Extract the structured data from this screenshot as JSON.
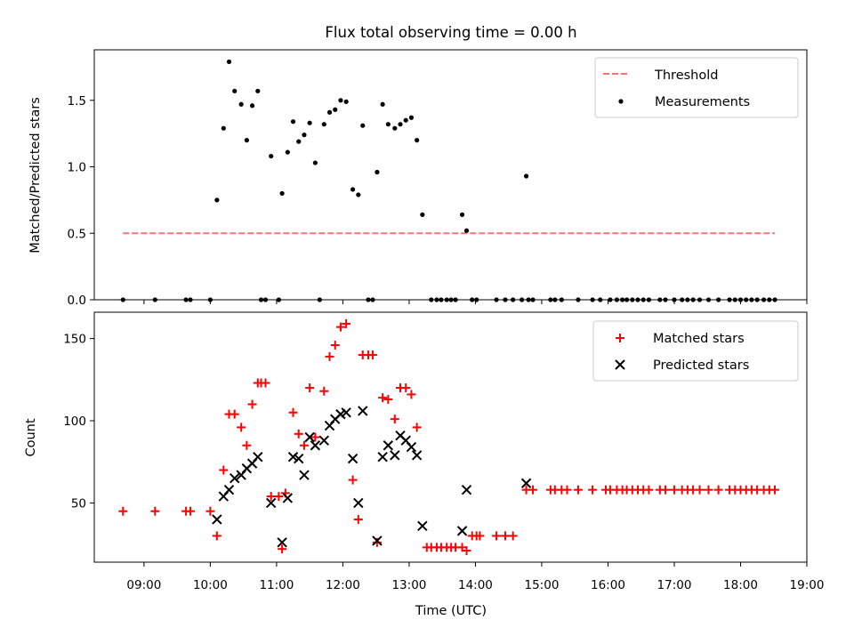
{
  "title": "Flux total observing time = 0.00 h",
  "top": {
    "ylabel": "Matched/Predicted stars",
    "ylim": [
      0,
      1.88
    ],
    "yticks": [
      "0.0",
      "0.5",
      "1.0",
      "1.5"
    ],
    "threshold": {
      "label": "Threshold",
      "value": 0.5,
      "x_range": [
        "08:41",
        "18:31"
      ],
      "color": "#ff7070"
    },
    "measurements_label": "Measurements",
    "measurements": [
      [
        "08:41",
        0
      ],
      [
        "09:10",
        0
      ],
      [
        "09:38",
        0
      ],
      [
        "09:42",
        0
      ],
      [
        "10:00",
        0
      ],
      [
        "10:06",
        0.75
      ],
      [
        "10:12",
        1.29
      ],
      [
        "10:17",
        1.79
      ],
      [
        "10:22",
        1.57
      ],
      [
        "10:28",
        1.47
      ],
      [
        "10:33",
        1.2
      ],
      [
        "10:38",
        1.46
      ],
      [
        "10:43",
        1.57
      ],
      [
        "10:46",
        0
      ],
      [
        "10:50",
        0
      ],
      [
        "10:55",
        1.08
      ],
      [
        "11:02",
        0
      ],
      [
        "11:05",
        0.8
      ],
      [
        "11:10",
        1.11
      ],
      [
        "11:15",
        1.34
      ],
      [
        "11:20",
        1.19
      ],
      [
        "11:25",
        1.24
      ],
      [
        "11:30",
        1.33
      ],
      [
        "11:35",
        1.03
      ],
      [
        "11:39",
        0
      ],
      [
        "11:43",
        1.32
      ],
      [
        "11:48",
        1.41
      ],
      [
        "11:53",
        1.43
      ],
      [
        "11:58",
        1.5
      ],
      [
        "12:03",
        1.49
      ],
      [
        "12:09",
        0.83
      ],
      [
        "12:14",
        0.79
      ],
      [
        "12:18",
        1.31
      ],
      [
        "12:23",
        0
      ],
      [
        "12:27",
        0
      ],
      [
        "12:31",
        0.96
      ],
      [
        "12:36",
        1.47
      ],
      [
        "12:41",
        1.32
      ],
      [
        "12:47",
        1.29
      ],
      [
        "12:52",
        1.32
      ],
      [
        "12:57",
        1.35
      ],
      [
        "13:02",
        1.37
      ],
      [
        "13:07",
        1.2
      ],
      [
        "13:12",
        0.64
      ],
      [
        "13:20",
        0
      ],
      [
        "13:25",
        0
      ],
      [
        "13:29",
        0
      ],
      [
        "13:34",
        0
      ],
      [
        "13:38",
        0
      ],
      [
        "13:42",
        0
      ],
      [
        "13:48",
        0.64
      ],
      [
        "13:52",
        0.52
      ],
      [
        "13:57",
        0
      ],
      [
        "14:01",
        0
      ],
      [
        "14:19",
        0
      ],
      [
        "14:27",
        0
      ],
      [
        "14:34",
        0
      ],
      [
        "14:42",
        0
      ],
      [
        "14:46",
        0.93
      ],
      [
        "14:48",
        0
      ],
      [
        "14:52",
        0
      ],
      [
        "15:08",
        0
      ],
      [
        "15:12",
        0
      ],
      [
        "15:18",
        0
      ],
      [
        "15:33",
        0
      ],
      [
        "15:46",
        0
      ],
      [
        "15:53",
        0
      ],
      [
        "16:02",
        0
      ],
      [
        "16:08",
        0
      ],
      [
        "16:13",
        0
      ],
      [
        "16:17",
        0
      ],
      [
        "16:22",
        0
      ],
      [
        "16:27",
        0
      ],
      [
        "16:32",
        0
      ],
      [
        "16:37",
        0
      ],
      [
        "16:47",
        0
      ],
      [
        "16:52",
        0
      ],
      [
        "17:00",
        0
      ],
      [
        "17:07",
        0
      ],
      [
        "17:12",
        0
      ],
      [
        "17:17",
        0
      ],
      [
        "17:23",
        0
      ],
      [
        "17:31",
        0
      ],
      [
        "17:40",
        0
      ],
      [
        "17:50",
        0
      ],
      [
        "17:55",
        0
      ],
      [
        "18:00",
        0
      ],
      [
        "18:05",
        0
      ],
      [
        "18:10",
        0
      ],
      [
        "18:15",
        0
      ],
      [
        "18:21",
        0
      ],
      [
        "18:26",
        0
      ],
      [
        "18:31",
        0
      ]
    ]
  },
  "bottom": {
    "ylabel": "Count",
    "ylim": [
      14,
      166
    ],
    "yticks": [
      "50",
      "100",
      "150"
    ],
    "matched_label": "Matched stars",
    "predicted_label": "Predicted stars",
    "matched": [
      [
        "08:41",
        45
      ],
      [
        "09:10",
        45
      ],
      [
        "09:38",
        45
      ],
      [
        "09:42",
        45
      ],
      [
        "10:00",
        45
      ],
      [
        "10:06",
        30
      ],
      [
        "10:12",
        70
      ],
      [
        "10:17",
        104
      ],
      [
        "10:22",
        104
      ],
      [
        "10:28",
        96
      ],
      [
        "10:33",
        85
      ],
      [
        "10:38",
        110
      ],
      [
        "10:43",
        123
      ],
      [
        "10:46",
        123
      ],
      [
        "10:50",
        123
      ],
      [
        "10:55",
        54
      ],
      [
        "11:02",
        54
      ],
      [
        "11:05",
        22
      ],
      [
        "11:08",
        56
      ],
      [
        "11:15",
        105
      ],
      [
        "11:20",
        92
      ],
      [
        "11:25",
        85
      ],
      [
        "11:30",
        120
      ],
      [
        "11:35",
        90
      ],
      [
        "11:43",
        118
      ],
      [
        "11:48",
        139
      ],
      [
        "11:53",
        146
      ],
      [
        "11:58",
        157
      ],
      [
        "12:03",
        159
      ],
      [
        "12:09",
        64
      ],
      [
        "12:14",
        40
      ],
      [
        "12:18",
        140
      ],
      [
        "12:23",
        140
      ],
      [
        "12:27",
        140
      ],
      [
        "12:31",
        26
      ],
      [
        "12:36",
        114
      ],
      [
        "12:41",
        113
      ],
      [
        "12:47",
        101
      ],
      [
        "12:52",
        120
      ],
      [
        "12:57",
        120
      ],
      [
        "13:02",
        116
      ],
      [
        "13:07",
        96
      ],
      [
        "13:16",
        23
      ],
      [
        "13:20",
        23
      ],
      [
        "13:25",
        23
      ],
      [
        "13:29",
        23
      ],
      [
        "13:34",
        23
      ],
      [
        "13:38",
        23
      ],
      [
        "13:42",
        23
      ],
      [
        "13:48",
        23
      ],
      [
        "13:52",
        21
      ],
      [
        "13:57",
        30
      ],
      [
        "14:01",
        30
      ],
      [
        "14:04",
        30
      ],
      [
        "14:19",
        30
      ],
      [
        "14:27",
        30
      ],
      [
        "14:34",
        30
      ],
      [
        "14:46",
        58
      ],
      [
        "14:52",
        58
      ],
      [
        "15:08",
        58
      ],
      [
        "15:12",
        58
      ],
      [
        "15:18",
        58
      ],
      [
        "15:23",
        58
      ],
      [
        "15:33",
        58
      ],
      [
        "15:46",
        58
      ],
      [
        "15:58",
        58
      ],
      [
        "16:02",
        58
      ],
      [
        "16:08",
        58
      ],
      [
        "16:13",
        58
      ],
      [
        "16:17",
        58
      ],
      [
        "16:22",
        58
      ],
      [
        "16:27",
        58
      ],
      [
        "16:32",
        58
      ],
      [
        "16:37",
        58
      ],
      [
        "16:47",
        58
      ],
      [
        "16:52",
        58
      ],
      [
        "17:00",
        58
      ],
      [
        "17:07",
        58
      ],
      [
        "17:12",
        58
      ],
      [
        "17:17",
        58
      ],
      [
        "17:23",
        58
      ],
      [
        "17:31",
        58
      ],
      [
        "17:40",
        58
      ],
      [
        "17:50",
        58
      ],
      [
        "17:55",
        58
      ],
      [
        "18:00",
        58
      ],
      [
        "18:05",
        58
      ],
      [
        "18:10",
        58
      ],
      [
        "18:15",
        58
      ],
      [
        "18:21",
        58
      ],
      [
        "18:26",
        58
      ],
      [
        "18:31",
        58
      ]
    ],
    "predicted": [
      [
        "10:06",
        40
      ],
      [
        "10:12",
        54
      ],
      [
        "10:17",
        58
      ],
      [
        "10:22",
        65
      ],
      [
        "10:28",
        67
      ],
      [
        "10:33",
        71
      ],
      [
        "10:38",
        74
      ],
      [
        "10:43",
        78
      ],
      [
        "10:55",
        50
      ],
      [
        "11:05",
        26
      ],
      [
        "11:10",
        53
      ],
      [
        "11:15",
        78
      ],
      [
        "11:20",
        77
      ],
      [
        "11:25",
        67
      ],
      [
        "11:30",
        90
      ],
      [
        "11:35",
        85
      ],
      [
        "11:43",
        88
      ],
      [
        "11:48",
        97
      ],
      [
        "11:53",
        101
      ],
      [
        "11:58",
        104
      ],
      [
        "12:03",
        105
      ],
      [
        "12:09",
        77
      ],
      [
        "12:14",
        50
      ],
      [
        "12:18",
        106
      ],
      [
        "12:31",
        27
      ],
      [
        "12:36",
        78
      ],
      [
        "12:41",
        85
      ],
      [
        "12:47",
        79
      ],
      [
        "12:52",
        91
      ],
      [
        "12:57",
        88
      ],
      [
        "13:02",
        84
      ],
      [
        "13:07",
        79
      ],
      [
        "13:12",
        36
      ],
      [
        "13:48",
        33
      ],
      [
        "13:52",
        58
      ],
      [
        "14:46",
        62
      ]
    ]
  },
  "xaxis": {
    "label": "Time (UTC)",
    "range": [
      "08:15",
      "19:00"
    ],
    "ticks": [
      "09:00",
      "10:00",
      "11:00",
      "12:00",
      "13:00",
      "14:00",
      "15:00",
      "16:00",
      "17:00",
      "18:00",
      "19:00"
    ]
  },
  "colors": {
    "matched": "#ff0000",
    "predicted": "#000000",
    "measurements": "#000000",
    "threshold": "#ff7070",
    "legend_border": "#cccccc"
  }
}
